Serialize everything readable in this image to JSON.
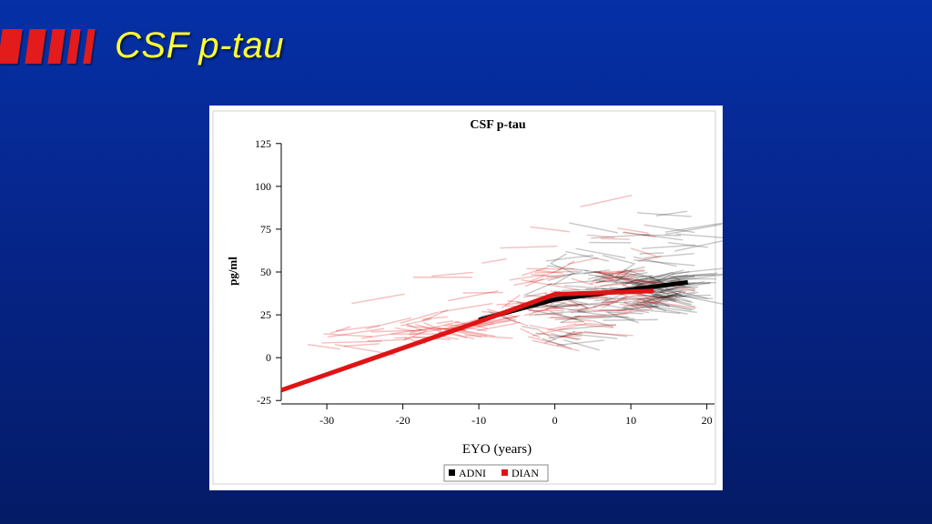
{
  "slide": {
    "title": "CSF p-tau"
  },
  "colors": {
    "background": "#0530a6",
    "title": "#ffff33",
    "stripes": "#e31b1b",
    "adni": "#000000",
    "dian": "#e01414"
  },
  "chart_data": {
    "type": "line",
    "title": "CSF p-tau",
    "xlabel": "EYO (years)",
    "ylabel": "pg/ml",
    "xlim": [
      -36,
      21
    ],
    "ylim": [
      -27,
      127
    ],
    "xticks": [
      -30,
      -20,
      -10,
      0,
      10,
      20
    ],
    "yticks": [
      125,
      100,
      75,
      50,
      25,
      0,
      -25
    ],
    "grid": false,
    "legend_position": "bottom",
    "series": [
      {
        "name": "ADNI",
        "color": "#000000",
        "x": [
          -10,
          0,
          17.5
        ],
        "y": [
          22,
          34,
          44
        ]
      },
      {
        "name": "DIAN",
        "color": "#e01414",
        "x": [
          -36,
          -10,
          0,
          13
        ],
        "y": [
          -19,
          21,
          37,
          39
        ]
      }
    ]
  }
}
